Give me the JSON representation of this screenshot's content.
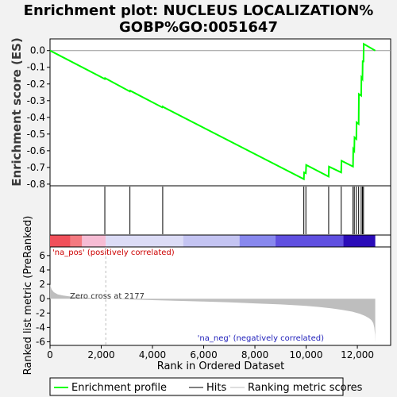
{
  "title_line1": "Enrichment plot: NUCLEUS LOCALIZATION%",
  "title_line2": "GOBP%GO:0051647",
  "colors": {
    "es_line": "#00ff00",
    "hit": "#000000",
    "ranked_fill": "#bebebe",
    "pos_label": "#cc0000",
    "neg_label": "#2222bb",
    "zero_line": "#999999"
  },
  "chart_data": [
    {
      "type": "line",
      "name": "enrichment-score",
      "ylabel": "Enrichment score (ES)",
      "ylim": [
        -0.81,
        0.07
      ],
      "xlim": [
        0,
        13300
      ],
      "yticks": [
        0.0,
        -0.1,
        -0.2,
        -0.3,
        -0.4,
        -0.5,
        -0.6,
        -0.7,
        -0.8
      ],
      "ytick_labels": [
        "0.0",
        "-0.1",
        "-0.2",
        "-0.3",
        "-0.4",
        "-0.5",
        "-0.6",
        "-0.7",
        "-0.8"
      ],
      "series": [
        {
          "x": [
            0,
            2140,
            2150,
            3120,
            3130,
            4380,
            4400,
            4420,
            9910,
            9920,
            9990,
            10000,
            10880,
            10890,
            11370,
            11380,
            11830,
            11840,
            11880,
            11890,
            11960,
            11970,
            12050,
            12060,
            12150,
            12160,
            12200,
            12210,
            12240,
            12250,
            12700
          ],
          "y": [
            0.0,
            -0.17,
            -0.165,
            -0.245,
            -0.24,
            -0.34,
            -0.335,
            -0.338,
            -0.77,
            -0.73,
            -0.735,
            -0.685,
            -0.755,
            -0.695,
            -0.73,
            -0.66,
            -0.695,
            -0.59,
            -0.6,
            -0.52,
            -0.53,
            -0.43,
            -0.44,
            -0.26,
            -0.27,
            -0.16,
            -0.17,
            -0.06,
            -0.07,
            0.04,
            0.0
          ]
        }
      ]
    },
    {
      "type": "hits",
      "name": "gene-set-hits",
      "positions": [
        2140,
        3120,
        4400,
        9910,
        9990,
        10880,
        11370,
        11830,
        11880,
        11960,
        12050,
        12150,
        12200,
        12240
      ]
    },
    {
      "type": "heatmap",
      "name": "rank-color-bar",
      "segments": [
        {
          "from": 0,
          "to": 800,
          "color": "#f0505a"
        },
        {
          "from": 800,
          "to": 1250,
          "color": "#f47a80"
        },
        {
          "from": 1250,
          "to": 2177,
          "color": "#f6bcd4"
        },
        {
          "from": 2177,
          "to": 5200,
          "color": "#dcdcf6"
        },
        {
          "from": 5200,
          "to": 7400,
          "color": "#c4c4f2"
        },
        {
          "from": 7400,
          "to": 8800,
          "color": "#8888ee"
        },
        {
          "from": 8800,
          "to": 11450,
          "color": "#6050e0"
        },
        {
          "from": 11450,
          "to": 12700,
          "color": "#2a0cb8"
        }
      ]
    },
    {
      "type": "area",
      "name": "ranked-list-metric",
      "xlabel": "Rank in Ordered Dataset",
      "ylabel": "Ranked list metric (PreRanked)",
      "ylim": [
        -6.5,
        7.2
      ],
      "xlim": [
        0,
        13300
      ],
      "xticks": [
        0,
        2000,
        4000,
        6000,
        8000,
        10000,
        12000
      ],
      "xtick_labels": [
        "0",
        "2,000",
        "4,000",
        "6,000",
        "8,000",
        "10,000",
        "12,000"
      ],
      "yticks": [
        6,
        4,
        2,
        0,
        -2,
        -4,
        -6
      ],
      "ytick_labels": [
        "6",
        "4",
        "2",
        "0",
        "-2",
        "-4",
        "-6"
      ],
      "zero_cross": 2177,
      "x": [
        0,
        60,
        150,
        300,
        500,
        800,
        1200,
        1700,
        2177,
        3000,
        4000,
        5000,
        6000,
        7000,
        8000,
        9000,
        10000,
        10500,
        11000,
        11400,
        11800,
        12100,
        12300,
        12450,
        12550,
        12620,
        12660,
        12690,
        12700
      ],
      "values": [
        2.0,
        1.3,
        0.9,
        0.6,
        0.45,
        0.3,
        0.18,
        0.08,
        0.0,
        -0.1,
        -0.2,
        -0.3,
        -0.4,
        -0.5,
        -0.65,
        -0.8,
        -1.0,
        -1.15,
        -1.35,
        -1.55,
        -1.8,
        -2.1,
        -2.4,
        -2.7,
        -3.0,
        -3.4,
        -4.0,
        -5.0,
        -6.0
      ]
    }
  ],
  "annotations": {
    "pos_label": "'na_pos' (positively correlated)",
    "neg_label": "'na_neg' (negatively correlated)",
    "zero_cross": "Zero cross at 2177"
  },
  "legend": {
    "items": [
      {
        "label": "Enrichment profile",
        "color": "#00ff00",
        "kind": "line"
      },
      {
        "label": "Hits",
        "color": "#000000",
        "kind": "line"
      },
      {
        "label": "Ranking metric scores",
        "color": "#bebebe",
        "kind": "line"
      }
    ]
  }
}
